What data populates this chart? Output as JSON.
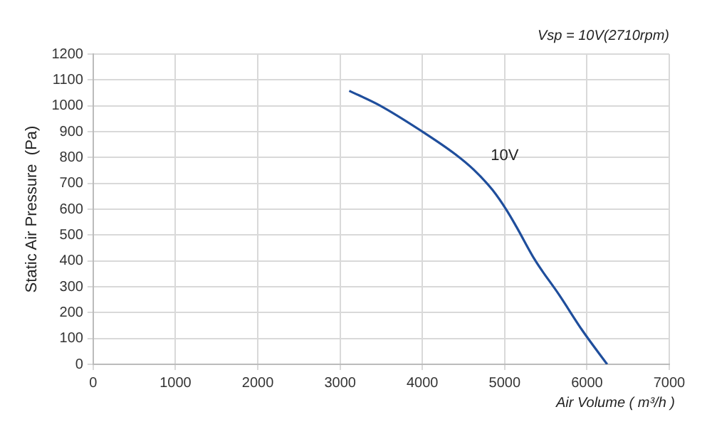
{
  "chart_data": {
    "type": "line",
    "xlabel": "Air Volume ( m³/h )",
    "ylabel": "Static Air Pressure  (Pa)",
    "annotations": [
      "Vsp = 10V(2710rpm)"
    ],
    "series": [
      {
        "name": "10V",
        "color": "#1f4e9c",
        "x": [
          3111,
          3473,
          3991,
          4394,
          4623,
          4853,
          5026,
          5141,
          5371,
          5659,
          5946,
          6245
        ],
        "values": [
          1058,
          1003,
          902,
          814,
          753,
          674,
          595,
          533,
          402,
          270,
          130,
          0
        ]
      }
    ],
    "xlim": [
      0,
      7000
    ],
    "xticks": [
      0,
      1000,
      2000,
      3000,
      4000,
      5000,
      6000,
      7000
    ],
    "ylim": [
      0,
      1200
    ],
    "yticks": [
      0,
      100,
      200,
      300,
      400,
      500,
      600,
      700,
      800,
      900,
      1000,
      1100,
      1200
    ],
    "grid": true,
    "legend": false,
    "marker": "none",
    "line_style": "solid"
  }
}
